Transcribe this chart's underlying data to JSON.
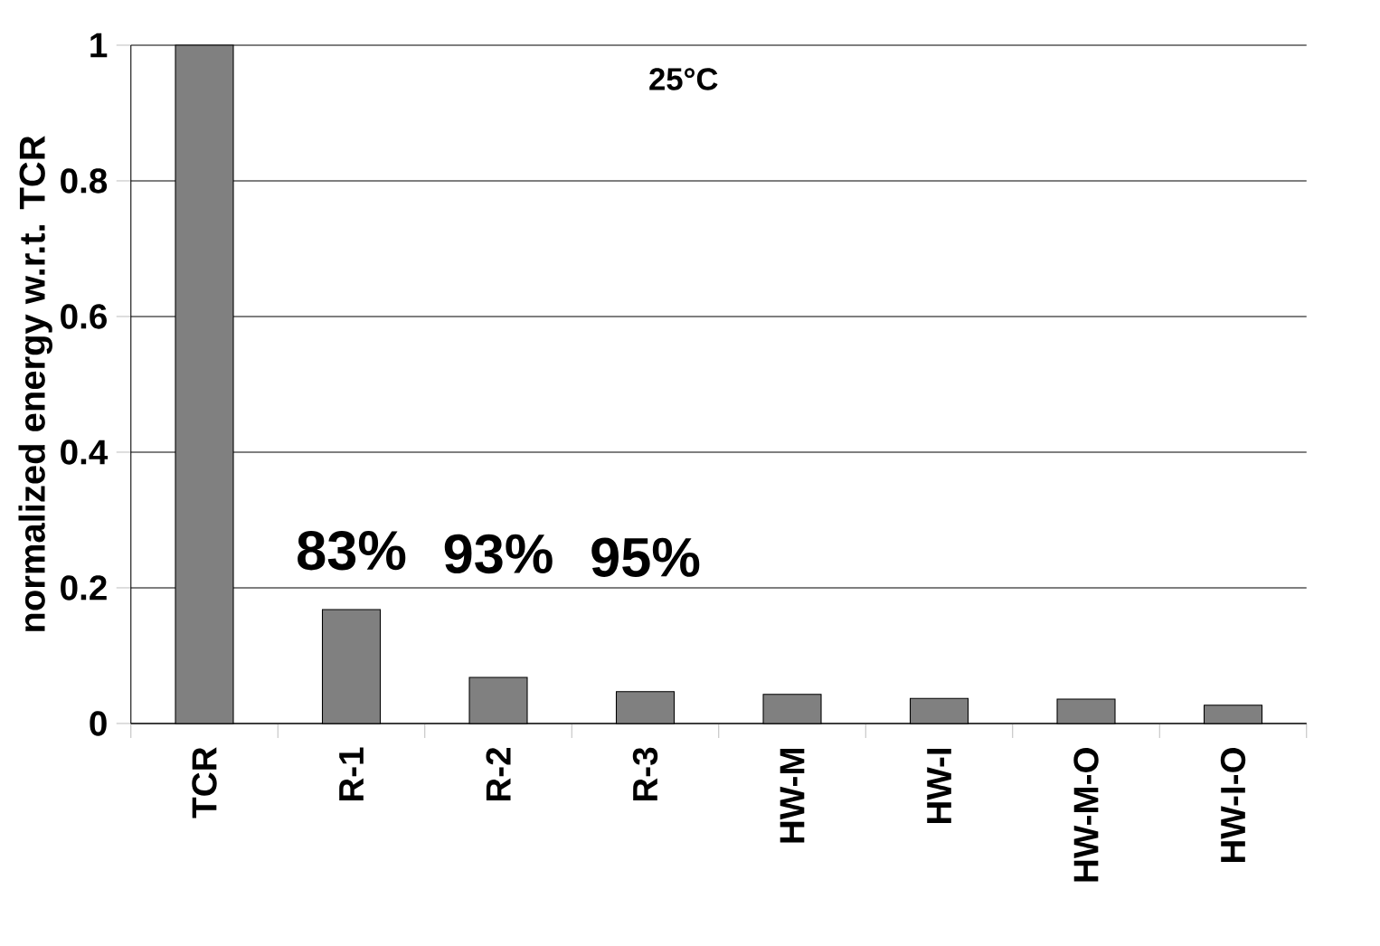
{
  "chart_data": {
    "type": "bar",
    "ylabel": "normalized energy w.r.t. TCR",
    "categories": [
      "TCR",
      "R-1",
      "R-2",
      "R-3",
      "HW-M",
      "HW-I",
      "HW-M-O",
      "HW-I-O"
    ],
    "values": [
      1.0,
      0.168,
      0.068,
      0.047,
      0.043,
      0.037,
      0.036,
      0.027
    ],
    "color": "#808080",
    "ylim": [
      0,
      1
    ],
    "yticks": [
      0,
      0.2,
      0.4,
      0.6,
      0.8,
      1
    ],
    "grid": "y",
    "annotations": [
      "25°C",
      "83%",
      "93%",
      "95%"
    ]
  }
}
